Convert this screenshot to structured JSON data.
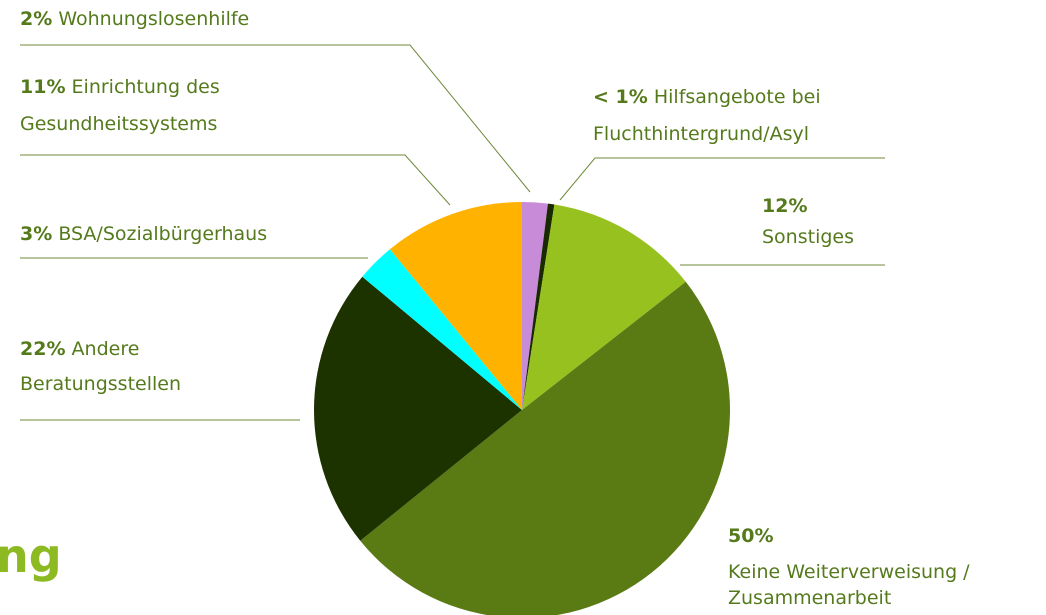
{
  "chart_data": {
    "type": "pie",
    "title": "ng",
    "values": [
      2,
      0.5,
      12,
      50,
      22,
      3,
      11
    ],
    "value_labels": [
      "2%",
      "< 1%",
      "12%",
      "50%",
      "22%",
      "3%",
      "11%"
    ],
    "labels": [
      [
        "Wohnungslosenhilfe"
      ],
      [
        "Hilfsangebote bei",
        "Fluchthintergrund/Asyl"
      ],
      [
        "Sonstiges"
      ],
      [
        "Keine Weiterverweisung /",
        "Zusammenarbeit"
      ],
      [
        "Andere",
        "Beratungsstellen"
      ],
      [
        "BSA/Sozialbürgerhaus"
      ],
      [
        "Einrichtung des",
        "Gesundheitssystems"
      ]
    ],
    "colors": [
      "#c78bd8",
      "#1a2a00",
      "#97c11f",
      "#5a7a14",
      "#1c3300",
      "#00ffff",
      "#ffb300"
    ]
  }
}
